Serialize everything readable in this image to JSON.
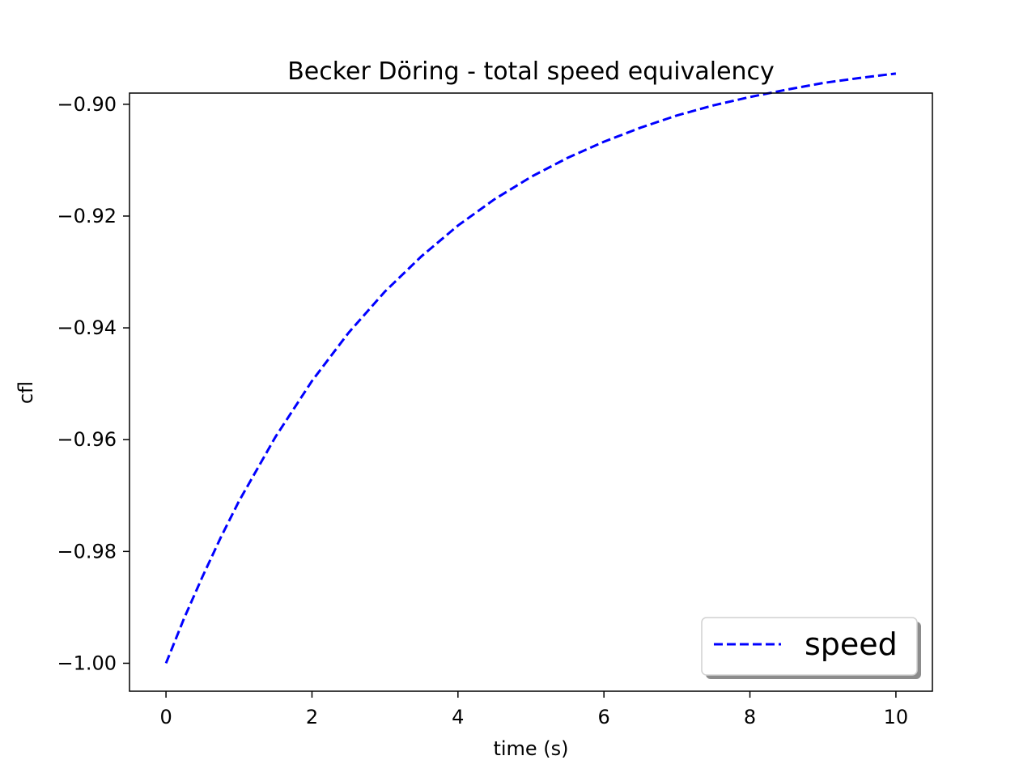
{
  "chart_data": {
    "type": "line",
    "title": "Becker Döring - total speed equivalency",
    "xlabel": "time (s)",
    "ylabel": "cfl",
    "xlim": [
      -0.5,
      10.5
    ],
    "ylim": [
      -1.005,
      -0.898
    ],
    "xticks": [
      0,
      2,
      4,
      6,
      8,
      10
    ],
    "xtick_labels": [
      "0",
      "2",
      "4",
      "6",
      "8",
      "10"
    ],
    "yticks": [
      -1.0,
      -0.98,
      -0.96,
      -0.94,
      -0.92,
      -0.9
    ],
    "ytick_labels": [
      "−1.00",
      "−0.98",
      "−0.96",
      "−0.94",
      "−0.92",
      "−0.90"
    ],
    "grid": false,
    "legend": {
      "position": "lower-right",
      "shadow": true
    },
    "series": [
      {
        "name": "speed",
        "color": "#0000ff",
        "line_style": "dashed",
        "x": [
          0,
          0.25,
          0.5,
          0.75,
          1,
          1.5,
          2,
          2.5,
          3,
          3.5,
          4,
          4.5,
          5,
          5.5,
          6,
          6.5,
          7,
          7.5,
          8,
          8.5,
          9,
          9.5,
          10
        ],
        "y": [
          -1.0,
          -0.9919,
          -0.9845,
          -0.9775,
          -0.971,
          -0.9595,
          -0.9495,
          -0.9409,
          -0.9335,
          -0.9272,
          -0.9217,
          -0.917,
          -0.913,
          -0.9096,
          -0.9067,
          -0.9042,
          -0.902,
          -0.9002,
          -0.8987,
          -0.8974,
          -0.8962,
          -0.8953,
          -0.8945
        ]
      }
    ]
  }
}
